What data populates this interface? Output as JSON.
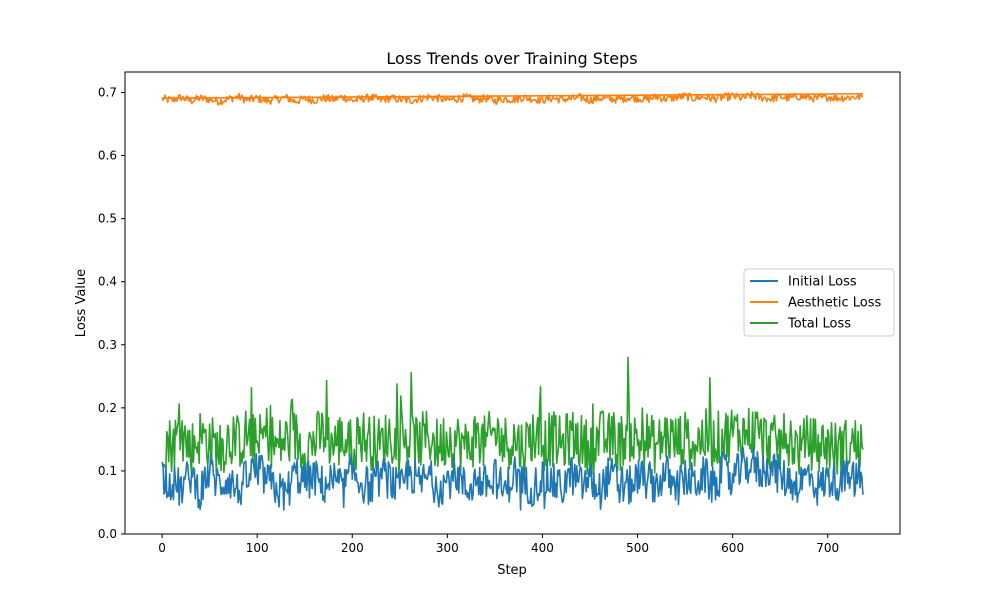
{
  "chart_data": {
    "type": "line",
    "title": "Loss Trends over Training Steps",
    "xlabel": "Step",
    "ylabel": "Loss Value",
    "xlim": [
      -39,
      776
    ],
    "ylim": [
      0.0,
      0.7325
    ],
    "xticks": [
      0,
      100,
      200,
      300,
      400,
      500,
      600,
      700
    ],
    "yticks": [
      0.0,
      0.1,
      0.2,
      0.3,
      0.4,
      0.5,
      0.6,
      0.7
    ],
    "xtick_labels": [
      "0",
      "100",
      "200",
      "300",
      "400",
      "500",
      "600",
      "700"
    ],
    "ytick_labels": [
      "0.0",
      "0.1",
      "0.2",
      "0.3",
      "0.4",
      "0.5",
      "0.6",
      "0.7"
    ],
    "grid": false,
    "legend_position": "center-right",
    "x_range": [
      0,
      737
    ],
    "series": [
      {
        "name": "Initial Loss",
        "color": "#1f77b4",
        "typical_range": [
          0.05,
          0.12
        ],
        "min": 0.033,
        "max": 0.14,
        "y_sampled_every_10_steps": [
          0.095,
          0.082,
          0.071,
          0.094,
          0.068,
          0.101,
          0.078,
          0.089,
          0.066,
          0.092,
          0.104,
          0.085,
          0.072,
          0.061,
          0.097,
          0.083,
          0.09,
          0.076,
          0.088,
          0.07,
          0.099,
          0.081,
          0.074,
          0.093,
          0.086,
          0.067,
          0.1,
          0.079,
          0.091,
          0.073,
          0.084,
          0.096,
          0.069,
          0.087,
          0.078,
          0.092,
          0.065,
          0.098,
          0.08,
          0.075,
          0.089,
          0.083,
          0.071,
          0.095,
          0.077,
          0.086,
          0.068,
          0.094,
          0.082,
          0.073,
          0.09,
          0.085,
          0.078,
          0.097,
          0.07,
          0.088,
          0.081,
          0.093,
          0.074,
          0.1,
          0.087,
          0.105,
          0.112,
          0.098,
          0.108,
          0.091,
          0.084,
          0.079,
          0.096,
          0.072,
          0.088,
          0.083,
          0.09,
          0.086
        ]
      },
      {
        "name": "Aesthetic Loss",
        "color": "#ff7f0e",
        "typical_range": [
          0.683,
          0.697
        ],
        "min": 0.673,
        "max": 0.701,
        "y_sampled_every_10_steps": [
          0.69,
          0.688,
          0.692,
          0.687,
          0.691,
          0.689,
          0.686,
          0.69,
          0.693,
          0.688,
          0.691,
          0.687,
          0.689,
          0.692,
          0.686,
          0.69,
          0.688,
          0.691,
          0.689,
          0.693,
          0.687,
          0.69,
          0.692,
          0.688,
          0.691,
          0.689,
          0.687,
          0.69,
          0.693,
          0.691,
          0.688,
          0.69,
          0.692,
          0.689,
          0.691,
          0.687,
          0.69,
          0.689,
          0.692,
          0.69,
          0.688,
          0.691,
          0.689,
          0.69,
          0.692,
          0.688,
          0.691,
          0.69,
          0.689,
          0.692,
          0.691,
          0.689,
          0.693,
          0.69,
          0.692,
          0.694,
          0.691,
          0.693,
          0.69,
          0.692,
          0.694,
          0.691,
          0.695,
          0.692,
          0.69,
          0.693,
          0.691,
          0.694,
          0.692,
          0.69,
          0.693,
          0.691,
          0.692,
          0.693
        ],
        "flat_trace_y": [
          0.691,
          0.698
        ]
      },
      {
        "name": "Total Loss",
        "color": "#2ca02c",
        "typical_range": [
          0.1,
          0.2
        ],
        "min": 0.095,
        "max": 0.28,
        "y_sampled_every_10_steps": [
          0.15,
          0.142,
          0.16,
          0.135,
          0.155,
          0.148,
          0.13,
          0.152,
          0.145,
          0.158,
          0.14,
          0.162,
          0.137,
          0.149,
          0.154,
          0.133,
          0.147,
          0.16,
          0.143,
          0.151,
          0.138,
          0.156,
          0.146,
          0.141,
          0.159,
          0.134,
          0.15,
          0.144,
          0.157,
          0.139,
          0.153,
          0.148,
          0.136,
          0.155,
          0.142,
          0.161,
          0.145,
          0.15,
          0.137,
          0.158,
          0.143,
          0.152,
          0.14,
          0.156,
          0.147,
          0.135,
          0.154,
          0.149,
          0.141,
          0.16,
          0.144,
          0.151,
          0.138,
          0.157,
          0.146,
          0.15,
          0.142,
          0.155,
          0.148,
          0.153,
          0.162,
          0.158,
          0.165,
          0.152,
          0.146,
          0.14,
          0.155,
          0.13,
          0.148,
          0.137,
          0.145,
          0.132,
          0.14,
          0.143
        ]
      }
    ]
  }
}
